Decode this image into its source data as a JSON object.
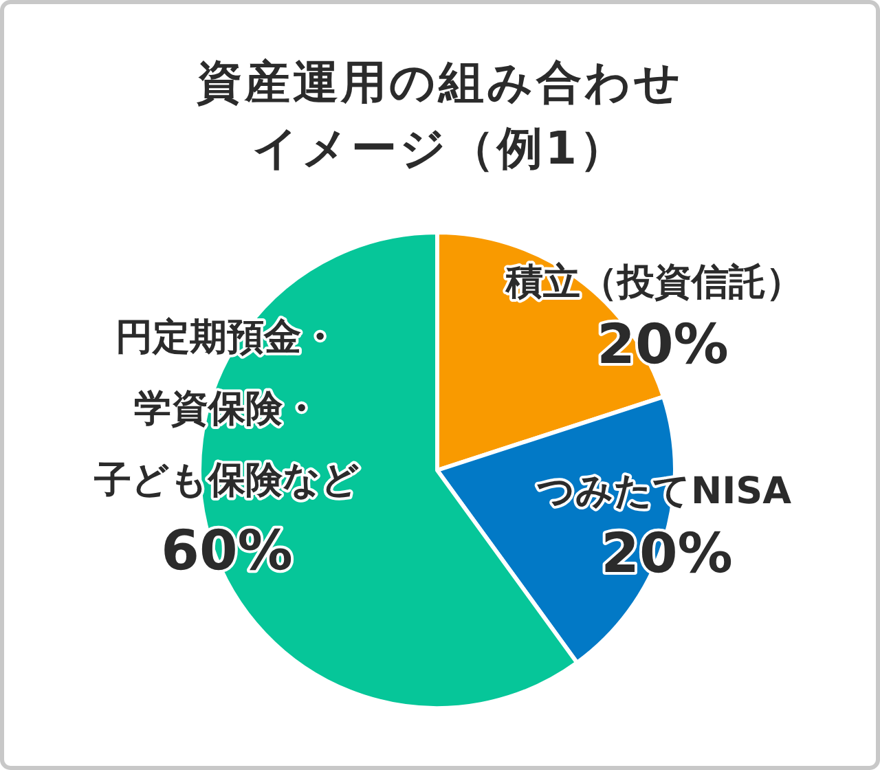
{
  "chart_data": {
    "type": "pie",
    "title": "資産運用の組み合わせイメージ（例1）",
    "categories": [
      "積立（投資信託）",
      "つみたてNISA",
      "円定期預金・学資保険・子ども保険など"
    ],
    "values": [
      20,
      20,
      60
    ],
    "colors": [
      "#f99a00",
      "#0279c6",
      "#06c699"
    ],
    "value_labels": [
      "20%",
      "20%",
      "60%"
    ]
  }
}
